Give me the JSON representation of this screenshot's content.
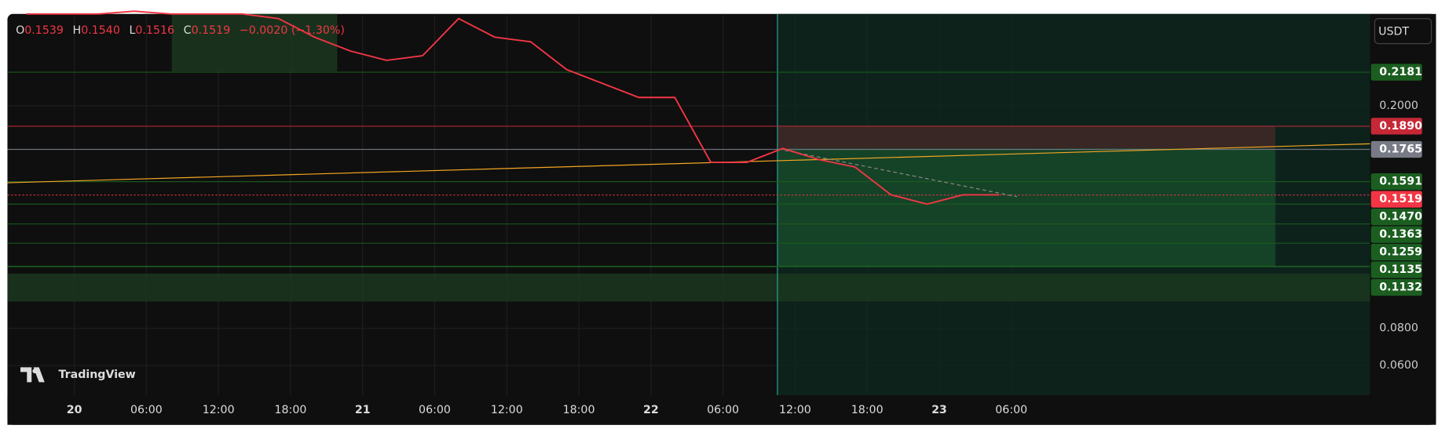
{
  "legend": {
    "o_label": "O",
    "o": "0.1539",
    "h_label": "H",
    "h": "0.1540",
    "l_label": "L",
    "l": "0.1516",
    "c_label": "C",
    "c": "0.1519",
    "change": "−0.0020 (−1.30%)"
  },
  "currency": "USDT",
  "watermark": "TradingView",
  "price_axis_labels": [
    "0.2000",
    "0.0800",
    "0.0600"
  ],
  "price_tags": [
    {
      "text": "0.2181",
      "color": "#1b5e20"
    },
    {
      "text": "0.1890",
      "color": "#c62836"
    },
    {
      "text": "0.1765",
      "color": "#787b86"
    },
    {
      "text": "0.1591",
      "color": "#1b5e20"
    },
    {
      "text": "0.1519",
      "color": "#f23645"
    },
    {
      "text": "0.1470",
      "color": "#1b5e20"
    },
    {
      "text": "0.1363",
      "color": "#1b5e20"
    },
    {
      "text": "0.1259",
      "color": "#1b5e20"
    },
    {
      "text": "0.1135",
      "color": "#1b5e20"
    },
    {
      "text": "0.1132",
      "color": "#1b5e20"
    }
  ],
  "time_labels": [
    "20",
    "06:00",
    "12:00",
    "18:00",
    "21",
    "06:00",
    "12:00",
    "18:00",
    "22",
    "06:00",
    "12:00",
    "18:00",
    "23",
    "06:00"
  ],
  "price_trace": {
    "start_hour": -4,
    "step_hours": 3,
    "color": "#f23645",
    "closes": [
      0.2495,
      0.2495,
      0.2495,
      0.251,
      0.2495,
      0.2495,
      0.2495,
      0.247,
      0.237,
      0.2295,
      0.2245,
      0.227,
      0.247,
      0.237,
      0.2345,
      0.2195,
      0.212,
      0.2045,
      0.2045,
      0.1695,
      0.1695,
      0.177,
      0.171,
      0.167,
      0.152,
      0.147,
      0.152,
      0.152
    ]
  }
}
